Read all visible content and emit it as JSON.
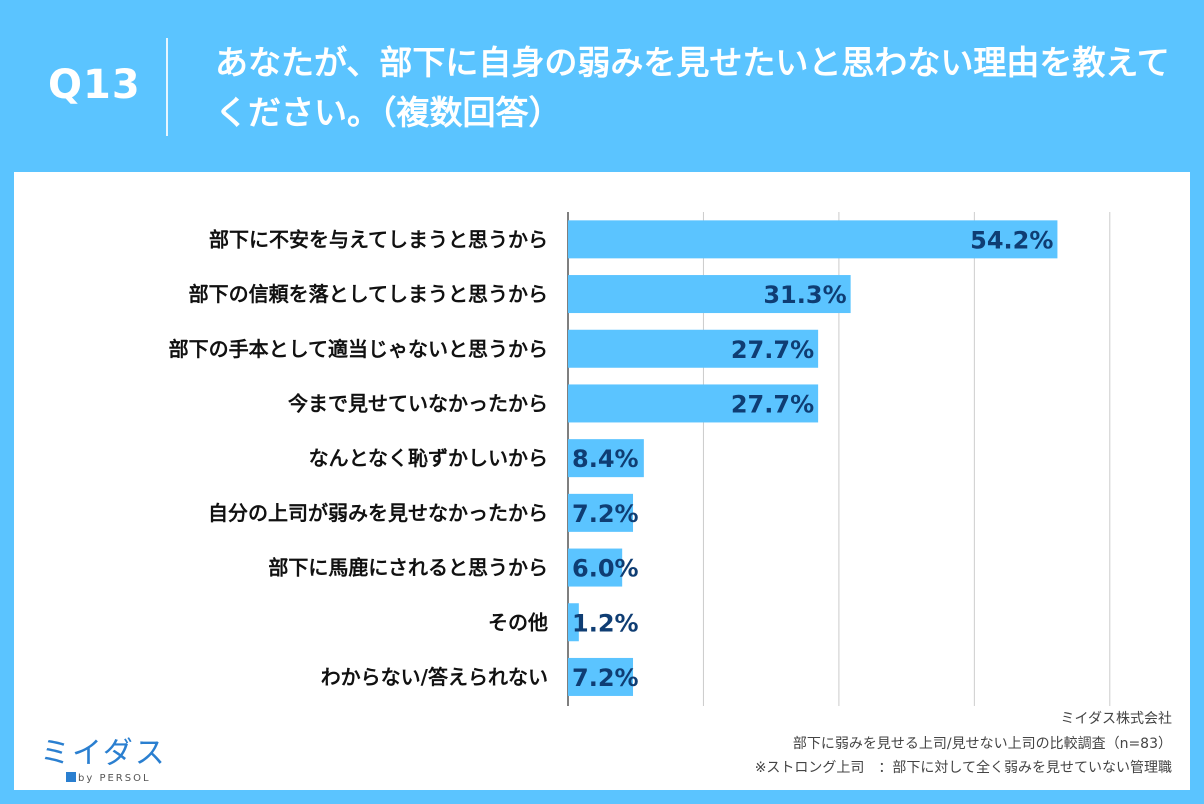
{
  "header": {
    "question_number": "Q13",
    "question_text": "あなたが、部下に自身の弱みを見せたいと思わない理由を教えてください。（複数回答）"
  },
  "chart_data": {
    "type": "bar",
    "orientation": "horizontal",
    "categories": [
      "部下に不安を与えてしまうと思うから",
      "部下の信頼を落としてしまうと思うから",
      "部下の手本として適当じゃないと思うから",
      "今まで見せていなかったから",
      "なんとなく恥ずかしいから",
      "自分の上司が弱みを見せなかったから",
      "部下に馬鹿にされると思うから",
      "その他",
      "わからない/答えられない"
    ],
    "values": [
      54.2,
      31.3,
      27.7,
      27.7,
      8.4,
      7.2,
      6.0,
      1.2,
      7.2
    ],
    "value_labels": [
      "54.2%",
      "31.3%",
      "27.7%",
      "27.7%",
      "8.4%",
      "7.2%",
      "6.0%",
      "1.2%",
      "7.2%"
    ],
    "xlim": [
      0,
      60
    ],
    "grid": true,
    "bar_color": "#5bc4ff"
  },
  "footer": {
    "company": "ミイダス株式会社",
    "survey": "部下に弱みを見せる上司/見せない上司の比較調査（n=83）",
    "note": "※ストロング上司　：部下に対して全く弱みを見せていない管理職"
  },
  "logo": {
    "name": "ミイダス",
    "sub": "by PERSOL"
  },
  "colors": {
    "background": "#5bc4ff",
    "bar": "#5bc4ff",
    "value_text": "#0f3d73",
    "grid": "#cccccc"
  }
}
